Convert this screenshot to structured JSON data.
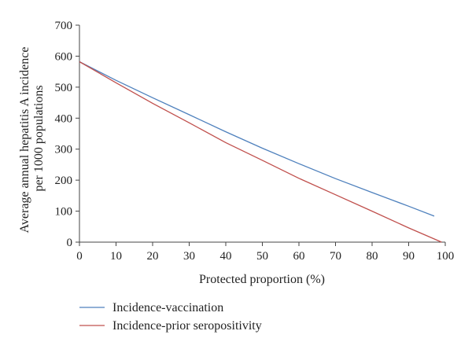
{
  "chart_data": {
    "type": "line",
    "title": "",
    "xlabel": "Protected proportion (%)",
    "ylabel": [
      "Average annual hepatitis A incidence",
      "per 1000 populations"
    ],
    "xlim": [
      0,
      100
    ],
    "ylim": [
      0,
      700
    ],
    "xticks": [
      "0",
      "10",
      "20",
      "30",
      "40",
      "50",
      "60",
      "70",
      "80",
      "90",
      "100"
    ],
    "yticks": [
      "0",
      "100",
      "200",
      "300",
      "400",
      "500",
      "600",
      "700"
    ],
    "grid": false,
    "legend_position": "bottom-left",
    "series": [
      {
        "name": "Incidence-vaccination",
        "color": "#4f81bd",
        "x": [
          0,
          10,
          20,
          30,
          40,
          50,
          60,
          70,
          80,
          90,
          97
        ],
        "y": [
          582,
          522,
          466,
          411,
          356,
          303,
          253,
          205,
          160,
          116,
          84
        ]
      },
      {
        "name": "Incidence-prior seropositivity",
        "color": "#c0504d",
        "x": [
          0,
          10,
          20,
          30,
          40,
          50,
          60,
          70,
          80,
          90,
          99
        ],
        "y": [
          582,
          514,
          448,
          385,
          321,
          264,
          206,
          153,
          100,
          46,
          0
        ]
      }
    ]
  }
}
